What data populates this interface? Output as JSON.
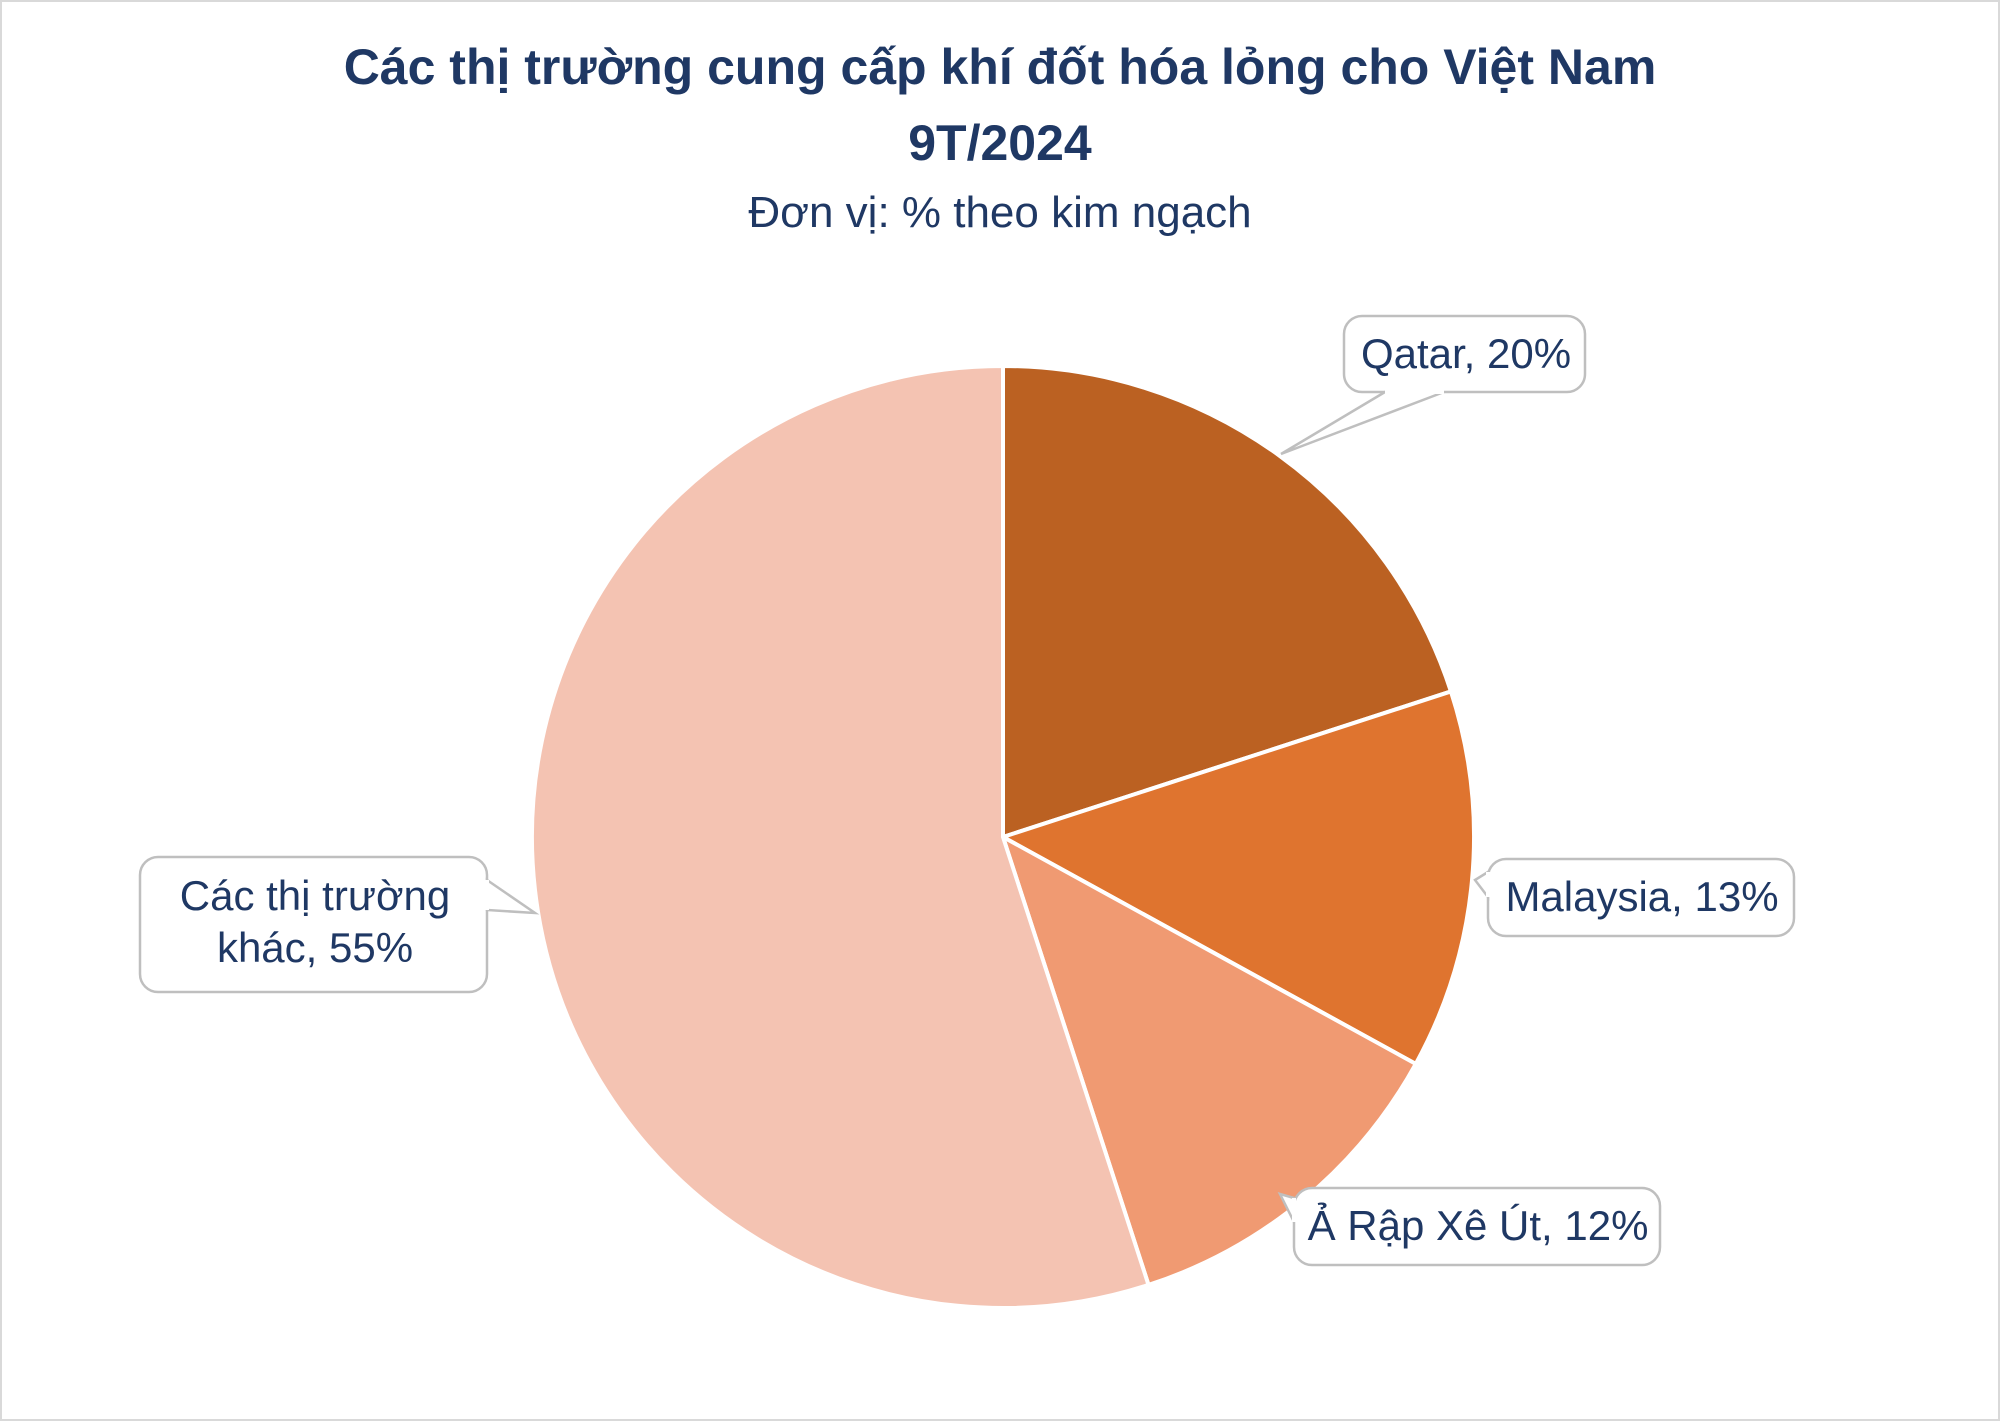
{
  "chart_data": {
    "type": "pie",
    "title": "Các thị trường cung cấp khí đốt hóa lỏng cho Việt Nam",
    "title_line2": "9T/2024",
    "subtitle": "Đơn vị: % theo kim ngạch",
    "start": "top",
    "direction": "clockwise",
    "slices": [
      {
        "name": "Qatar",
        "value": 20,
        "label": "Qatar, 20%",
        "color": "#BB6122"
      },
      {
        "name": "Malaysia",
        "value": 13,
        "label": "Malaysia, 13%",
        "color": "#DF742F"
      },
      {
        "name": "Ả Rập Xê Út",
        "value": 12,
        "label": "Ả Rập Xê Út, 12%",
        "color": "#F09A72"
      },
      {
        "name": "Các thị trường khác",
        "value": 55,
        "label_line1": "Các thị trường",
        "label_line2": "khác, 55%",
        "color": "#F4C3B2"
      }
    ],
    "legend": "none",
    "data_labels": "callouts"
  }
}
